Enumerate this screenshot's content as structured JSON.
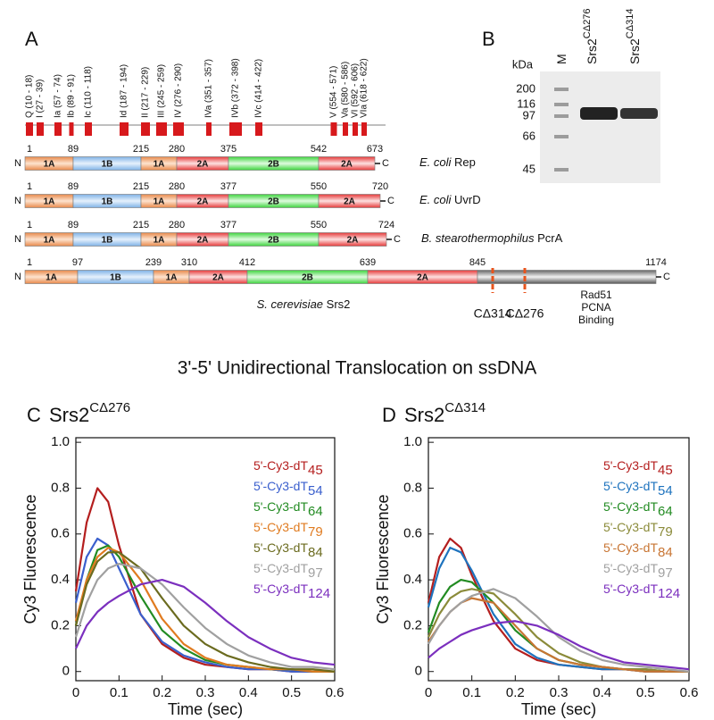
{
  "panel_a": {
    "label": "A",
    "motifs": [
      "Q (10 - 18)",
      "I (27 - 39)",
      "Ia (57 - 74)",
      "Ib (89 - 91)",
      "Ic (110 - 118)",
      "Id (187 - 194)",
      "II (217 - 229)",
      "III (245 - 259)",
      "IV (276 - 290)",
      "IVa (351 - 357)",
      "IVb (372 - 398)",
      "IVc (414 - 422)",
      "V (554 - 571)",
      "Va (580 - 586)",
      "VI (592 - 606)",
      "VIa (618 - 622)"
    ],
    "proteins": [
      {
        "positions": [
          1,
          89,
          215,
          280,
          375,
          542,
          673
        ],
        "domains": [
          "1A",
          "1B",
          "1A",
          "2A",
          "2B",
          "2A"
        ],
        "species": "E. coli",
        "protein": "Rep"
      },
      {
        "positions": [
          1,
          89,
          215,
          280,
          377,
          550,
          720
        ],
        "domains": [
          "1A",
          "1B",
          "1A",
          "2A",
          "2B",
          "2A"
        ],
        "species": "E. coli",
        "protein": "UvrD"
      },
      {
        "positions": [
          1,
          89,
          215,
          280,
          377,
          550,
          724
        ],
        "domains": [
          "1A",
          "1B",
          "1A",
          "2A",
          "2B",
          "2A"
        ],
        "species": "B. stearothermophilus",
        "protein": "PcrA"
      },
      {
        "positions": [
          1,
          97,
          239,
          310,
          412,
          639,
          845,
          1174
        ],
        "domains": [
          "1A",
          "1B",
          "1A",
          "2A",
          "2B",
          "2A"
        ],
        "species": "S. cerevisiae",
        "protein": "Srs2"
      }
    ],
    "terminals": [
      "N",
      "C"
    ],
    "truncations": [
      "CΔ314",
      "CΔ276"
    ],
    "binding_label": [
      "Rad51",
      "PCNA",
      "Binding"
    ]
  },
  "panel_b": {
    "label": "B",
    "unit": "kDa",
    "lanes": [
      {
        "name": "M"
      },
      {
        "name": "Srs2",
        "superscript": "CΔ276"
      },
      {
        "name": "Srs2",
        "superscript": "CΔ314"
      }
    ],
    "markers": [
      200,
      116,
      97,
      66,
      45
    ]
  },
  "heading": "3'-5' Unidirectional Translocation on ssDNA",
  "chart_data": [
    {
      "type": "line",
      "label": "C",
      "title": "Srs2",
      "title_superscript": "CΔ276",
      "x_label": "Time (sec)",
      "y_label": "Cy3 Fluorescence",
      "x": [
        0,
        0.025,
        0.05,
        0.075,
        0.1,
        0.15,
        0.2,
        0.25,
        0.3,
        0.35,
        0.4,
        0.45,
        0.5,
        0.55,
        0.6
      ],
      "xlim": [
        0,
        0.6
      ],
      "ylim": [
        -0.04,
        1.02
      ],
      "xticks": [
        0,
        0.1,
        0.2,
        0.3,
        0.4,
        0.5,
        0.6
      ],
      "yticks": [
        0,
        0.2,
        0.4,
        0.6,
        0.8,
        {
          "value": 1,
          "label": "1.0"
        }
      ],
      "series": [
        {
          "name": "5'-Cy3-dT",
          "subscript": "45",
          "color": "#b41e1e",
          "values": [
            0.35,
            0.65,
            0.8,
            0.74,
            0.55,
            0.25,
            0.12,
            0.06,
            0.03,
            0.02,
            0.01,
            0.01,
            0,
            0,
            0
          ]
        },
        {
          "name": "5'-Cy3-dT",
          "subscript": "54",
          "color": "#3a5fcd",
          "values": [
            0.3,
            0.5,
            0.58,
            0.55,
            0.45,
            0.25,
            0.13,
            0.07,
            0.04,
            0.02,
            0.01,
            0.01,
            0,
            0,
            0
          ]
        },
        {
          "name": "5'-Cy3-dT",
          "subscript": "64",
          "color": "#228b22",
          "values": [
            0.2,
            0.4,
            0.53,
            0.55,
            0.5,
            0.33,
            0.18,
            0.1,
            0.05,
            0.03,
            0.02,
            0.01,
            0.01,
            0,
            0
          ]
        },
        {
          "name": "5'-Cy3-dT",
          "subscript": "79",
          "color": "#e07b20",
          "values": [
            0.22,
            0.4,
            0.5,
            0.54,
            0.52,
            0.4,
            0.23,
            0.12,
            0.06,
            0.03,
            0.02,
            0.01,
            0.01,
            0,
            0
          ]
        },
        {
          "name": "5'-Cy3-dT",
          "subscript": "84",
          "color": "#6b6b1f",
          "values": [
            0.2,
            0.38,
            0.48,
            0.52,
            0.52,
            0.45,
            0.32,
            0.2,
            0.12,
            0.07,
            0.04,
            0.02,
            0.01,
            0.01,
            0
          ]
        },
        {
          "name": "5'-Cy3-dT",
          "subscript": "97",
          "color": "#a0a0a0",
          "values": [
            0.15,
            0.3,
            0.4,
            0.45,
            0.47,
            0.45,
            0.38,
            0.28,
            0.19,
            0.12,
            0.07,
            0.04,
            0.02,
            0.02,
            0.01
          ]
        },
        {
          "name": "5'-Cy3-dT",
          "subscript": "124",
          "color": "#7b2fbe",
          "values": [
            0.1,
            0.2,
            0.26,
            0.3,
            0.33,
            0.38,
            0.4,
            0.37,
            0.3,
            0.22,
            0.15,
            0.1,
            0.06,
            0.04,
            0.03
          ]
        }
      ]
    },
    {
      "type": "line",
      "label": "D",
      "title": "Srs2",
      "title_superscript": "CΔ314",
      "x_label": "Time (sec)",
      "y_label": "Cy3 Fluorescence",
      "x": [
        0,
        0.025,
        0.05,
        0.075,
        0.1,
        0.15,
        0.2,
        0.25,
        0.3,
        0.35,
        0.4,
        0.45,
        0.5,
        0.55,
        0.6
      ],
      "xlim": [
        0,
        0.6
      ],
      "ylim": [
        -0.04,
        1.02
      ],
      "xticks": [
        0,
        0.1,
        0.2,
        0.3,
        0.4,
        0.5,
        0.6
      ],
      "yticks": [
        0,
        0.2,
        0.4,
        0.6,
        0.8,
        {
          "value": 1,
          "label": "1.0"
        }
      ],
      "series": [
        {
          "name": "5'-Cy3-dT",
          "subscript": "45",
          "color": "#b41e1e",
          "values": [
            0.3,
            0.5,
            0.58,
            0.54,
            0.42,
            0.22,
            0.1,
            0.05,
            0.03,
            0.02,
            0.01,
            0.01,
            0,
            0,
            0
          ]
        },
        {
          "name": "5'-Cy3-dT",
          "subscript": "54",
          "color": "#1e73be",
          "values": [
            0.28,
            0.45,
            0.54,
            0.52,
            0.44,
            0.25,
            0.12,
            0.06,
            0.03,
            0.02,
            0.01,
            0.01,
            0,
            0,
            0
          ]
        },
        {
          "name": "5'-Cy3-dT",
          "subscript": "64",
          "color": "#228b22",
          "values": [
            0.17,
            0.3,
            0.37,
            0.4,
            0.39,
            0.3,
            0.18,
            0.1,
            0.05,
            0.03,
            0.02,
            0.01,
            0.01,
            0,
            0
          ]
        },
        {
          "name": "5'-Cy3-dT",
          "subscript": "79",
          "color": "#8b8b3a",
          "values": [
            0.15,
            0.25,
            0.32,
            0.35,
            0.36,
            0.34,
            0.25,
            0.15,
            0.08,
            0.04,
            0.02,
            0.01,
            0.01,
            0,
            0
          ]
        },
        {
          "name": "5'-Cy3-dT",
          "subscript": "84",
          "color": "#c87533",
          "values": [
            0.13,
            0.2,
            0.26,
            0.3,
            0.32,
            0.3,
            0.2,
            0.1,
            0.05,
            0.03,
            0.02,
            0.01,
            0,
            0,
            0
          ]
        },
        {
          "name": "5'-Cy3-dT",
          "subscript": "97",
          "color": "#a0a0a0",
          "values": [
            0.12,
            0.2,
            0.26,
            0.3,
            0.33,
            0.36,
            0.32,
            0.24,
            0.15,
            0.09,
            0.05,
            0.03,
            0.02,
            0.01,
            0
          ]
        },
        {
          "name": "5'-Cy3-dT",
          "subscript": "124",
          "color": "#7b2fbe",
          "values": [
            0.06,
            0.1,
            0.13,
            0.16,
            0.18,
            0.21,
            0.22,
            0.2,
            0.16,
            0.11,
            0.07,
            0.04,
            0.03,
            0.02,
            0.01
          ]
        }
      ]
    }
  ]
}
